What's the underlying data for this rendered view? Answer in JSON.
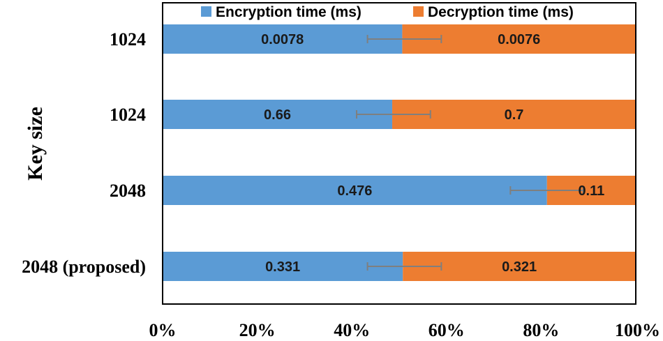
{
  "chart_data": {
    "type": "bar",
    "orientation": "horizontal",
    "stacked": "percent",
    "categories": [
      "1024",
      "1024",
      "2048",
      "2048 (proposed)"
    ],
    "series": [
      {
        "name": "Encryption time (ms)",
        "color": "#5b9bd5",
        "values": [
          0.0078,
          0.66,
          0.476,
          0.331
        ],
        "labels": [
          "0.0078",
          "0.66",
          "0.476",
          "0.331"
        ],
        "error_bars": [
          [
            43.3,
            58.9
          ],
          [
            41.0,
            56.6
          ],
          [
            73.5,
            88.9
          ],
          [
            43.3,
            58.9
          ]
        ]
      },
      {
        "name": "Decryption time (ms)",
        "color": "#ed7d31",
        "values": [
          0.0076,
          0.7,
          0.11,
          0.321
        ],
        "labels": [
          "0.0076",
          "0.7",
          "0.11",
          "0.321"
        ]
      }
    ],
    "ylabel": "Key size",
    "xlabel": "",
    "x_ticks": [
      "0%",
      "20%",
      "40%",
      "60%",
      "80%",
      "100%"
    ],
    "xlim": [
      0,
      100
    ],
    "legend_position": "top",
    "grid": false
  }
}
